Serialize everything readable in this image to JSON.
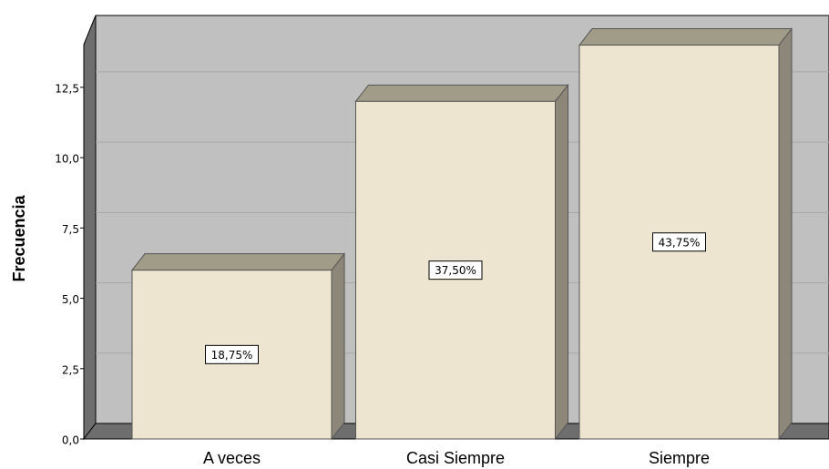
{
  "chart_data": {
    "type": "bar3d",
    "y_label": "Frecuencia",
    "categories": [
      "A veces",
      "Casi Siempre",
      "Siempre"
    ],
    "values": [
      6,
      12,
      14
    ],
    "annotations": [
      "18,75%",
      "37,50%",
      "43,75%"
    ],
    "color": "#ede5cf",
    "wall_color": "#c0c0c0",
    "ylim": [
      0,
      14.6
    ],
    "yticks": [
      {
        "value": 0,
        "label": "0,0"
      },
      {
        "value": 2.5,
        "label": "2,5"
      },
      {
        "value": 5,
        "label": "5,0"
      },
      {
        "value": 7.5,
        "label": "7,5"
      },
      {
        "value": 10,
        "label": "10,0"
      },
      {
        "value": 12.5,
        "label": "12,5"
      }
    ],
    "grid": true
  }
}
